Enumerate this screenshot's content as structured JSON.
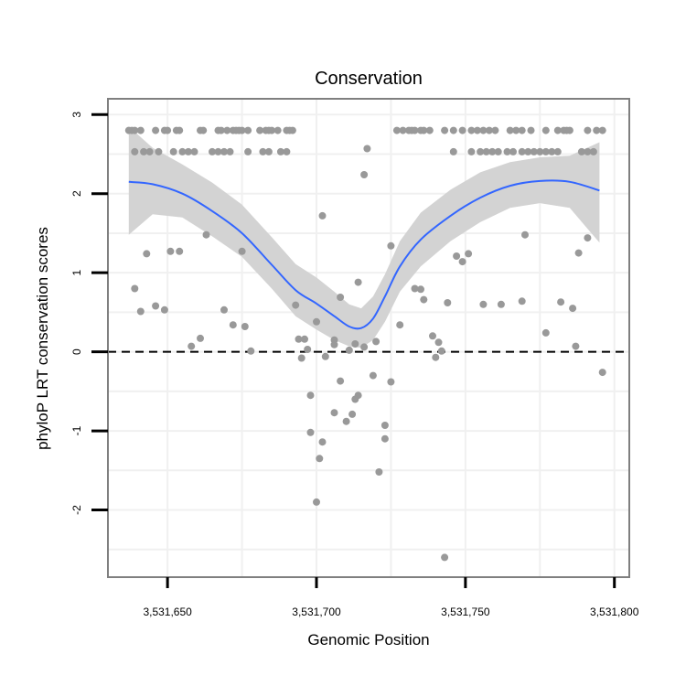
{
  "chart_data": {
    "type": "scatter",
    "title": "Conservation",
    "xlabel": "Genomic Position",
    "ylabel": "phyloP LRT conservation scores",
    "xlim": [
      3531630,
      3531805
    ],
    "ylim": [
      -2.85,
      3.2
    ],
    "x_ticks": [
      3531650,
      3531700,
      3531750,
      3531800
    ],
    "x_tick_labels": [
      "3,531,650",
      "3,531,700",
      "3,531,750",
      "3,531,800"
    ],
    "y_ticks": [
      -2,
      -1,
      0,
      1,
      2,
      3
    ],
    "y_tick_labels": [
      "-2",
      "-1",
      "0",
      "1",
      "2",
      "3"
    ],
    "grid": true,
    "colors": {
      "points": "#999999",
      "smooth_line": "#3366FF",
      "confidence_band": "#D3D3D3",
      "reference_line": "#000000",
      "panel_border": "#7F7F7F",
      "grid": "#F0F0F0"
    },
    "reference_line": {
      "y": 0,
      "style": "dashed"
    },
    "series": [
      {
        "name": "scores",
        "type": "scatter",
        "points": [
          [
            3531637,
            2.8
          ],
          [
            3531638,
            2.8
          ],
          [
            3531639,
            2.8
          ],
          [
            3531641,
            2.8
          ],
          [
            3531646,
            2.8
          ],
          [
            3531649,
            2.8
          ],
          [
            3531650,
            2.8
          ],
          [
            3531653,
            2.8
          ],
          [
            3531654,
            2.8
          ],
          [
            3531661,
            2.8
          ],
          [
            3531662,
            2.8
          ],
          [
            3531667,
            2.8
          ],
          [
            3531668,
            2.8
          ],
          [
            3531670,
            2.8
          ],
          [
            3531672,
            2.8
          ],
          [
            3531673,
            2.8
          ],
          [
            3531674,
            2.8
          ],
          [
            3531675,
            2.8
          ],
          [
            3531677,
            2.8
          ],
          [
            3531681,
            2.8
          ],
          [
            3531683,
            2.8
          ],
          [
            3531684,
            2.8
          ],
          [
            3531685,
            2.8
          ],
          [
            3531687,
            2.8
          ],
          [
            3531690,
            2.8
          ],
          [
            3531691,
            2.8
          ],
          [
            3531692,
            2.8
          ],
          [
            3531639,
            2.53
          ],
          [
            3531642,
            2.53
          ],
          [
            3531644,
            2.53
          ],
          [
            3531647,
            2.53
          ],
          [
            3531652,
            2.53
          ],
          [
            3531655,
            2.53
          ],
          [
            3531657,
            2.53
          ],
          [
            3531659,
            2.53
          ],
          [
            3531665,
            2.53
          ],
          [
            3531667,
            2.53
          ],
          [
            3531669,
            2.53
          ],
          [
            3531671,
            2.53
          ],
          [
            3531677,
            2.53
          ],
          [
            3531682,
            2.53
          ],
          [
            3531684,
            2.53
          ],
          [
            3531688,
            2.53
          ],
          [
            3531690,
            2.53
          ],
          [
            3531727,
            2.8
          ],
          [
            3531729,
            2.8
          ],
          [
            3531731,
            2.8
          ],
          [
            3531732,
            2.8
          ],
          [
            3531733,
            2.8
          ],
          [
            3531735,
            2.8
          ],
          [
            3531736,
            2.8
          ],
          [
            3531738,
            2.8
          ],
          [
            3531743,
            2.8
          ],
          [
            3531746,
            2.8
          ],
          [
            3531749,
            2.8
          ],
          [
            3531752,
            2.8
          ],
          [
            3531754,
            2.8
          ],
          [
            3531756,
            2.8
          ],
          [
            3531758,
            2.8
          ],
          [
            3531760,
            2.8
          ],
          [
            3531765,
            2.8
          ],
          [
            3531767,
            2.8
          ],
          [
            3531769,
            2.8
          ],
          [
            3531772,
            2.8
          ],
          [
            3531777,
            2.8
          ],
          [
            3531781,
            2.8
          ],
          [
            3531783,
            2.8
          ],
          [
            3531784,
            2.8
          ],
          [
            3531785,
            2.8
          ],
          [
            3531791,
            2.8
          ],
          [
            3531794,
            2.8
          ],
          [
            3531796,
            2.8
          ],
          [
            3531746,
            2.53
          ],
          [
            3531752,
            2.53
          ],
          [
            3531755,
            2.53
          ],
          [
            3531757,
            2.53
          ],
          [
            3531759,
            2.53
          ],
          [
            3531761,
            2.53
          ],
          [
            3531764,
            2.53
          ],
          [
            3531766,
            2.53
          ],
          [
            3531769,
            2.53
          ],
          [
            3531771,
            2.53
          ],
          [
            3531773,
            2.53
          ],
          [
            3531775,
            2.53
          ],
          [
            3531777,
            2.53
          ],
          [
            3531779,
            2.53
          ],
          [
            3531781,
            2.53
          ],
          [
            3531789,
            2.53
          ],
          [
            3531791,
            2.53
          ],
          [
            3531793,
            2.53
          ],
          [
            3531717,
            2.57
          ],
          [
            3531716,
            2.24
          ],
          [
            3531702,
            1.72
          ],
          [
            3531725,
            1.34
          ],
          [
            3531663,
            1.48
          ],
          [
            3531770,
            1.48
          ],
          [
            3531643,
            1.24
          ],
          [
            3531651,
            1.27
          ],
          [
            3531654,
            1.27
          ],
          [
            3531675,
            1.27
          ],
          [
            3531747,
            1.21
          ],
          [
            3531749,
            1.14
          ],
          [
            3531751,
            1.24
          ],
          [
            3531788,
            1.25
          ],
          [
            3531791,
            1.44
          ],
          [
            3531639,
            0.8
          ],
          [
            3531714,
            0.88
          ],
          [
            3531733,
            0.8
          ],
          [
            3531735,
            0.79
          ],
          [
            3531708,
            0.69
          ],
          [
            3531744,
            0.62
          ],
          [
            3531756,
            0.6
          ],
          [
            3531762,
            0.6
          ],
          [
            3531769,
            0.64
          ],
          [
            3531782,
            0.63
          ],
          [
            3531786,
            0.55
          ],
          [
            3531669,
            0.53
          ],
          [
            3531693,
            0.59
          ],
          [
            3531649,
            0.53
          ],
          [
            3531646,
            0.58
          ],
          [
            3531641,
            0.51
          ],
          [
            3531736,
            0.66
          ],
          [
            3531728,
            0.34
          ],
          [
            3531700,
            0.38
          ],
          [
            3531672,
            0.34
          ],
          [
            3531676,
            0.32
          ],
          [
            3531777,
            0.24
          ],
          [
            3531661,
            0.17
          ],
          [
            3531696,
            0.16
          ],
          [
            3531694,
            0.16
          ],
          [
            3531706,
            0.15
          ],
          [
            3531720,
            0.13
          ],
          [
            3531713,
            0.1
          ],
          [
            3531706,
            0.09
          ],
          [
            3531739,
            0.2
          ],
          [
            3531741,
            0.12
          ],
          [
            3531658,
            0.07
          ],
          [
            3531787,
            0.07
          ],
          [
            3531697,
            0.03
          ],
          [
            3531711,
            0.02
          ],
          [
            3531678,
            0.01
          ],
          [
            3531742,
            0.01
          ],
          [
            3531716,
            0.06
          ],
          [
            3531695,
            -0.08
          ],
          [
            3531703,
            -0.06
          ],
          [
            3531740,
            -0.07
          ],
          [
            3531719,
            -0.3
          ],
          [
            3531708,
            -0.37
          ],
          [
            3531725,
            -0.38
          ],
          [
            3531796,
            -0.26
          ],
          [
            3531698,
            -0.55
          ],
          [
            3531714,
            -0.55
          ],
          [
            3531713,
            -0.6
          ],
          [
            3531706,
            -0.77
          ],
          [
            3531710,
            -0.88
          ],
          [
            3531712,
            -0.79
          ],
          [
            3531723,
            -0.93
          ],
          [
            3531698,
            -1.02
          ],
          [
            3531723,
            -1.1
          ],
          [
            3531702,
            -1.14
          ],
          [
            3531701,
            -1.35
          ],
          [
            3531721,
            -1.52
          ],
          [
            3531700,
            -1.9
          ],
          [
            3531743,
            -2.6
          ]
        ]
      },
      {
        "name": "smooth",
        "type": "line",
        "x": [
          3531637,
          3531645,
          3531655,
          3531665,
          3531675,
          3531685,
          3531693,
          3531700,
          3531706,
          3531711,
          3531715,
          3531719,
          3531723,
          3531728,
          3531735,
          3531745,
          3531755,
          3531765,
          3531775,
          3531785,
          3531795
        ],
        "y": [
          2.15,
          2.12,
          2.0,
          1.78,
          1.5,
          1.1,
          0.78,
          0.61,
          0.45,
          0.32,
          0.3,
          0.42,
          0.7,
          1.08,
          1.42,
          1.72,
          1.95,
          2.1,
          2.16,
          2.15,
          2.04
        ],
        "lower": [
          1.48,
          1.74,
          1.7,
          1.46,
          1.2,
          0.8,
          0.45,
          0.28,
          0.15,
          0.07,
          0.05,
          0.15,
          0.38,
          0.76,
          1.08,
          1.4,
          1.64,
          1.82,
          1.88,
          1.82,
          1.38
        ],
        "upper": [
          2.85,
          2.58,
          2.37,
          2.14,
          1.86,
          1.45,
          1.11,
          0.94,
          0.76,
          0.6,
          0.55,
          0.7,
          0.98,
          1.4,
          1.76,
          2.05,
          2.27,
          2.4,
          2.46,
          2.48,
          2.65
        ]
      }
    ]
  }
}
